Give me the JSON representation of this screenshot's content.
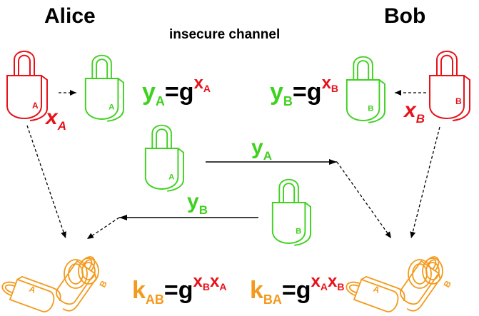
{
  "titles": {
    "alice": "Alice",
    "bob": "Bob",
    "channel": "insecure channel"
  },
  "lock_letters": {
    "alice_private": "A",
    "alice_public": "A",
    "bob_public": "B",
    "bob_private": "B",
    "transit_a": "A",
    "transit_b": "B",
    "shared_left_a": "A",
    "shared_left_b": "B",
    "shared_right_a": "A",
    "shared_right_b": "B"
  },
  "alice": {
    "secret_base": "x",
    "secret_sub": "A",
    "public_base": "y",
    "public_sub": "A",
    "generator": "g",
    "eq": "=",
    "exp_base": "x",
    "exp_sub": "A"
  },
  "bob": {
    "secret_base": "x",
    "secret_sub": "B",
    "public_base": "y",
    "public_sub": "B",
    "generator": "g",
    "eq": "=",
    "exp_base": "x",
    "exp_sub": "B"
  },
  "transfer": {
    "to_bob_base": "y",
    "to_bob_sub": "A",
    "to_alice_base": "y",
    "to_alice_sub": "B"
  },
  "shared": {
    "left_key_base": "k",
    "left_key_sub": "AB",
    "left_eq": "=g",
    "left_exp1_base": "x",
    "left_exp1_sub": "B",
    "left_exp2_base": "x",
    "left_exp2_sub": "A",
    "right_key_base": "k",
    "right_key_sub": "BA",
    "right_eq": "=g",
    "right_exp1_base": "x",
    "right_exp1_sub": "A",
    "right_exp2_base": "x",
    "right_exp2_sub": "B"
  },
  "colors": {
    "private": "#e8111a",
    "public": "#3fd11f",
    "shared": "#f39a1d",
    "text": "#000000"
  }
}
